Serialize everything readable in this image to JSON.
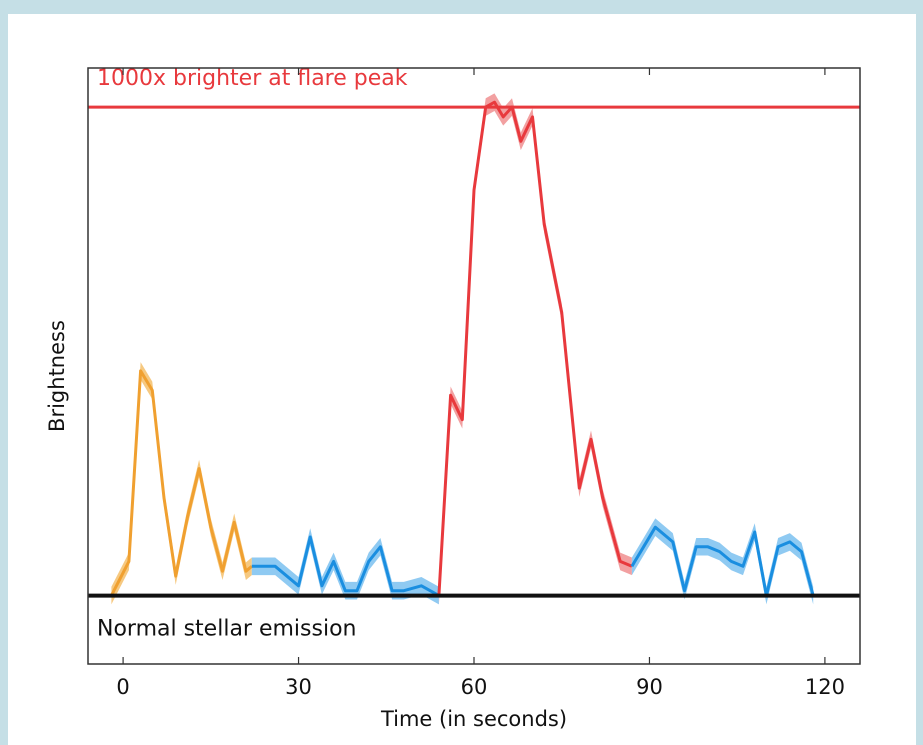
{
  "chart_data": {
    "type": "line",
    "title": "",
    "xlabel": "Time (in seconds)",
    "ylabel": "Brightness",
    "xlim": [
      -6,
      126
    ],
    "ylim": [
      -0.14,
      1.08
    ],
    "xticks": [
      0,
      30,
      60,
      90,
      120
    ],
    "yticks": [],
    "grid": false,
    "legend": "none",
    "reference_lines": [
      {
        "label": "1000x brighter at flare peak",
        "y": 1.0,
        "color": "#e8393d"
      },
      {
        "label": "Normal stellar emission",
        "y": 0.0,
        "color": "#111111"
      }
    ],
    "series": [
      {
        "color": "#f0a030",
        "band_color": "#f5bf6b",
        "x": [
          -2,
          1,
          3,
          5,
          7,
          9,
          11,
          13,
          15,
          17,
          19,
          21,
          22
        ],
        "y": [
          0.0,
          0.07,
          0.46,
          0.42,
          0.2,
          0.04,
          0.16,
          0.26,
          0.14,
          0.05,
          0.15,
          0.05,
          0.06
        ]
      },
      {
        "color": "#1a8ee0",
        "band_color": "#7bc1f0",
        "x": [
          22,
          26,
          30,
          32,
          34,
          36,
          38,
          40,
          42,
          44,
          46,
          48,
          51,
          54
        ],
        "y": [
          0.06,
          0.06,
          0.02,
          0.12,
          0.02,
          0.07,
          0.01,
          0.01,
          0.07,
          0.1,
          0.01,
          0.01,
          0.02,
          0.0
        ]
      },
      {
        "color": "#e8393d",
        "band_color": "#f08f91",
        "x": [
          54,
          56,
          58,
          60,
          62,
          63.5,
          65,
          66.5,
          68,
          70,
          72,
          75,
          78,
          80,
          82,
          85,
          87
        ],
        "y": [
          0.0,
          0.41,
          0.36,
          0.83,
          1.0,
          1.01,
          0.98,
          1.0,
          0.93,
          0.98,
          0.76,
          0.58,
          0.22,
          0.32,
          0.2,
          0.07,
          0.06
        ]
      },
      {
        "color": "#1a8ee0",
        "band_color": "#7bc1f0",
        "x": [
          87,
          89,
          91,
          94,
          96,
          98,
          100,
          102,
          104,
          106,
          108,
          110,
          112,
          114,
          116,
          118
        ],
        "y": [
          0.06,
          0.1,
          0.14,
          0.11,
          0.01,
          0.1,
          0.1,
          0.09,
          0.07,
          0.06,
          0.13,
          0.0,
          0.1,
          0.11,
          0.09,
          0.0
        ]
      }
    ]
  }
}
